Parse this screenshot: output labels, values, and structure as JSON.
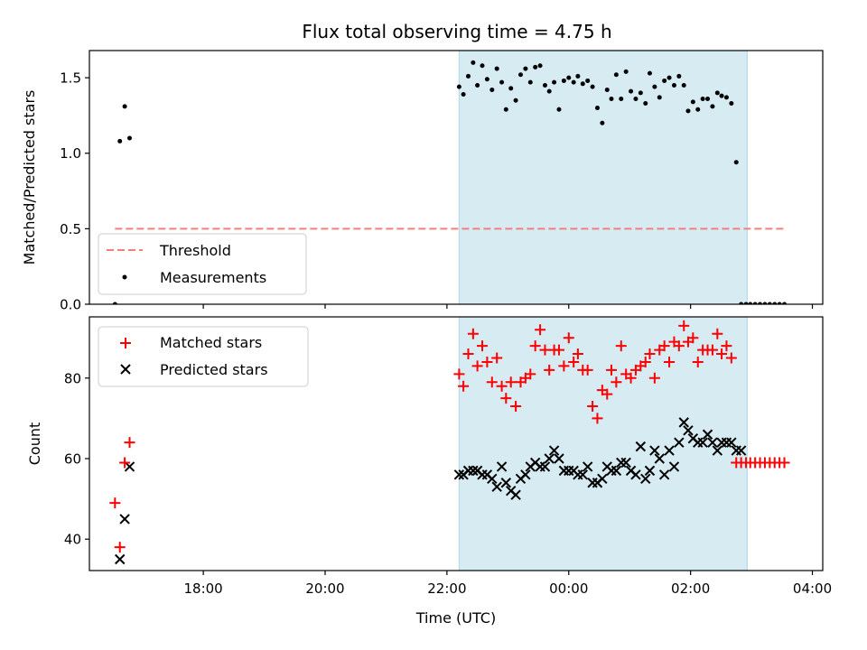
{
  "chart_data": [
    {
      "type": "scatter",
      "panel": "top",
      "title": "Flux total observing time = 4.75 h",
      "xlabel": "",
      "ylabel": "Matched/Predicted stars",
      "xlim": [
        16.13,
        28.17
      ],
      "ylim": [
        0.0,
        1.68
      ],
      "yticks": [
        0.0,
        0.5,
        1.0,
        1.5
      ],
      "ytick_labels": [
        "0.0",
        "0.5",
        "1.0",
        "1.5"
      ],
      "shaded_region": [
        22.2,
        26.93
      ],
      "shade_color": "#add8e6",
      "legend_position": "lower-left",
      "series": [
        {
          "name": "Threshold",
          "style": "dashed-line",
          "color": "#f08080",
          "x": [
            16.55,
            27.55
          ],
          "y": [
            0.5,
            0.5
          ]
        },
        {
          "name": "Measurements",
          "style": "dot",
          "color": "#000000",
          "x": [
            16.55,
            16.63,
            16.71,
            16.79,
            22.2,
            22.27,
            22.35,
            22.43,
            22.5,
            22.58,
            22.66,
            22.74,
            22.82,
            22.9,
            22.97,
            23.05,
            23.13,
            23.21,
            23.29,
            23.37,
            23.45,
            23.53,
            23.61,
            23.68,
            23.76,
            23.84,
            23.92,
            24.0,
            24.08,
            24.15,
            24.23,
            24.31,
            24.39,
            24.47,
            24.55,
            24.63,
            24.7,
            24.78,
            24.86,
            24.94,
            25.02,
            25.1,
            25.18,
            25.26,
            25.33,
            25.41,
            25.49,
            25.57,
            25.65,
            25.73,
            25.81,
            25.89,
            25.96,
            26.04,
            26.12,
            26.2,
            26.28,
            26.36,
            26.44,
            26.51,
            26.59,
            26.67,
            26.75,
            26.83,
            26.91,
            26.98,
            27.06,
            27.14,
            27.22,
            27.3,
            27.38,
            27.46,
            27.54
          ],
          "y": [
            0.0,
            1.08,
            1.31,
            1.1,
            1.44,
            1.39,
            1.51,
            1.6,
            1.45,
            1.58,
            1.49,
            1.42,
            1.56,
            1.47,
            1.29,
            1.43,
            1.35,
            1.52,
            1.56,
            1.47,
            1.57,
            1.58,
            1.45,
            1.41,
            1.47,
            1.29,
            1.48,
            1.5,
            1.47,
            1.51,
            1.46,
            1.48,
            1.44,
            1.3,
            1.2,
            1.42,
            1.36,
            1.52,
            1.36,
            1.54,
            1.41,
            1.36,
            1.4,
            1.33,
            1.53,
            1.44,
            1.37,
            1.48,
            1.5,
            1.45,
            1.51,
            1.45,
            1.28,
            1.34,
            1.29,
            1.36,
            1.36,
            1.31,
            1.4,
            1.38,
            1.37,
            1.33,
            0.94,
            0.0,
            0.0,
            0.0,
            0.0,
            0.0,
            0.0,
            0.0,
            0.0,
            0.0,
            0.0
          ]
        }
      ]
    },
    {
      "type": "scatter",
      "panel": "bottom",
      "xlabel": "Time (UTC)",
      "ylabel": "Count",
      "xlim": [
        16.13,
        28.17
      ],
      "ylim": [
        32.2,
        95.2
      ],
      "xticks": [
        18,
        20,
        22,
        24,
        26,
        28
      ],
      "xtick_labels": [
        "18:00",
        "20:00",
        "22:00",
        "00:00",
        "02:00",
        "04:00"
      ],
      "yticks": [
        40,
        60,
        80
      ],
      "ytick_labels": [
        "40",
        "60",
        "80"
      ],
      "shaded_region": [
        22.2,
        26.93
      ],
      "shade_color": "#add8e6",
      "legend_position": "upper-left",
      "series": [
        {
          "name": "Matched stars",
          "marker": "plus",
          "color": "#ff0000",
          "x": [
            16.55,
            16.63,
            16.71,
            16.79,
            22.2,
            22.27,
            22.35,
            22.43,
            22.5,
            22.58,
            22.66,
            22.74,
            22.82,
            22.9,
            22.97,
            23.05,
            23.13,
            23.21,
            23.29,
            23.37,
            23.45,
            23.53,
            23.61,
            23.68,
            23.76,
            23.84,
            23.92,
            24.0,
            24.08,
            24.15,
            24.23,
            24.31,
            24.39,
            24.47,
            24.55,
            24.63,
            24.7,
            24.78,
            24.86,
            24.94,
            25.02,
            25.1,
            25.18,
            25.26,
            25.33,
            25.41,
            25.49,
            25.57,
            25.65,
            25.73,
            25.81,
            25.89,
            25.96,
            26.04,
            26.12,
            26.2,
            26.28,
            26.36,
            26.44,
            26.51,
            26.59,
            26.67,
            26.75,
            26.83,
            26.91,
            26.98,
            27.06,
            27.14,
            27.22,
            27.3,
            27.38,
            27.46,
            27.54
          ],
          "y": [
            49,
            38,
            59,
            64,
            81,
            78,
            86,
            91,
            83,
            88,
            84,
            79,
            85,
            78,
            75,
            79,
            73,
            79,
            80,
            81,
            88,
            92,
            87,
            82,
            87,
            87,
            83,
            90,
            84,
            86,
            82,
            82,
            73,
            70,
            77,
            76,
            82,
            79,
            88,
            81,
            80,
            82,
            83,
            84,
            86,
            80,
            87,
            88,
            84,
            89,
            88,
            93,
            89,
            90,
            84,
            87,
            87,
            87,
            91,
            86,
            88,
            85,
            59,
            59,
            59,
            59,
            59,
            59,
            59,
            59,
            59,
            59,
            59
          ]
        },
        {
          "name": "Predicted stars",
          "marker": "x",
          "color": "#000000",
          "x": [
            16.63,
            16.71,
            16.79,
            22.2,
            22.27,
            22.35,
            22.43,
            22.5,
            22.58,
            22.66,
            22.74,
            22.82,
            22.9,
            22.97,
            23.05,
            23.13,
            23.21,
            23.29,
            23.37,
            23.45,
            23.53,
            23.61,
            23.68,
            23.76,
            23.84,
            23.92,
            24.0,
            24.08,
            24.15,
            24.23,
            24.31,
            24.39,
            24.47,
            24.55,
            24.63,
            24.7,
            24.78,
            24.86,
            24.94,
            25.02,
            25.1,
            25.18,
            25.26,
            25.33,
            25.41,
            25.49,
            25.57,
            25.65,
            25.73,
            25.81,
            25.89,
            25.96,
            26.04,
            26.12,
            26.2,
            26.28,
            26.36,
            26.44,
            26.51,
            26.59,
            26.67,
            26.75,
            26.83
          ],
          "y": [
            35,
            45,
            58,
            56,
            56,
            57,
            57,
            57,
            56,
            56,
            55,
            53,
            58,
            54,
            52,
            51,
            55,
            56,
            58,
            59,
            58,
            58,
            60,
            62,
            60,
            57,
            57,
            57,
            56,
            56,
            58,
            54,
            54,
            55,
            58,
            57,
            57,
            59,
            59,
            57,
            56,
            63,
            55,
            57,
            62,
            60,
            56,
            62,
            58,
            64,
            69,
            67,
            65,
            64,
            64,
            66,
            64,
            62,
            64,
            64,
            64,
            62,
            62
          ]
        }
      ]
    }
  ]
}
